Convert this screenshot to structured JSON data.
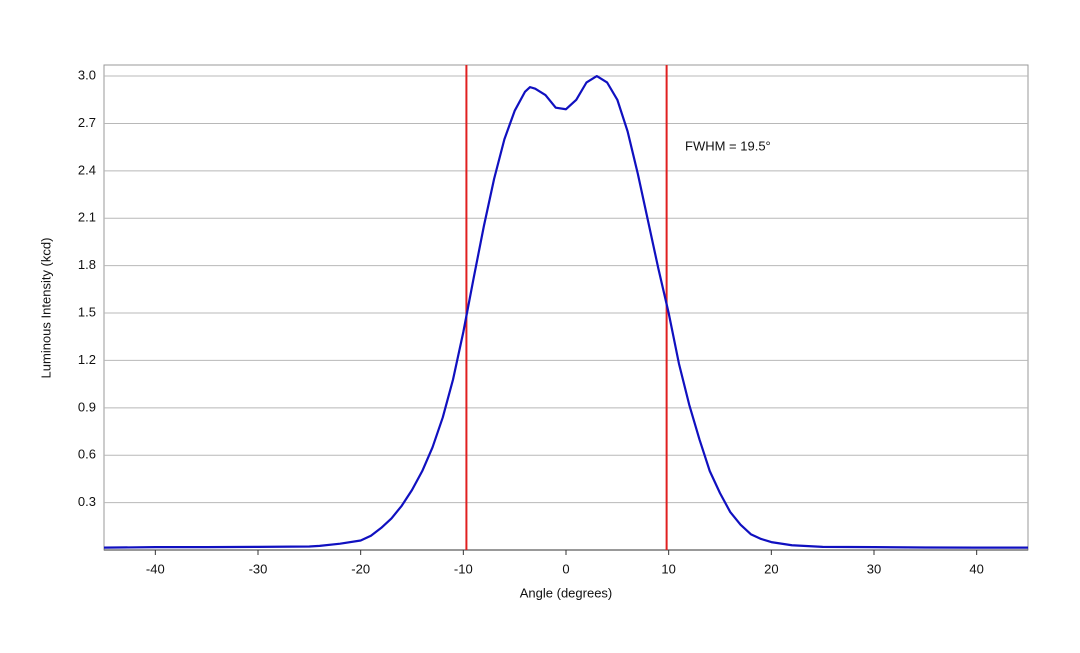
{
  "chart_data": {
    "type": "line",
    "x_label": "Angle (degrees)",
    "y_label": "Luminous Intensity (kcd)",
    "annotation": "FWHM = 19.5°",
    "xlim": [
      -45,
      45
    ],
    "ylim": [
      0,
      3.07
    ],
    "xticks": [
      -40,
      -30,
      -20,
      -10,
      0,
      10,
      20,
      30,
      40
    ],
    "yticks": [
      0.3,
      0.6,
      0.9,
      1.2,
      1.5,
      1.8,
      2.1,
      2.4,
      2.7,
      {
        "value": 3,
        "label": "3.0"
      }
    ],
    "grid": true,
    "vlines": {
      "color": "#e02020",
      "values": [
        -9.7,
        9.8
      ]
    },
    "x": [
      -45,
      -40,
      -35,
      -30,
      -25,
      -24,
      -22,
      -20,
      -19,
      -18,
      -17,
      -16,
      -15,
      -14,
      -13,
      -12,
      -11,
      -10,
      -9,
      -8,
      -7,
      -6,
      -5,
      -4,
      -3.5,
      -3,
      -2,
      -1,
      0,
      1,
      2,
      3,
      4,
      5,
      6,
      7,
      8,
      9,
      10,
      11,
      12,
      13,
      14,
      15,
      16,
      17,
      18,
      19,
      20,
      22,
      25,
      30,
      35,
      40,
      45
    ],
    "series": [
      {
        "color": "#1010c0",
        "values": [
          0.015,
          0.018,
          0.018,
          0.02,
          0.022,
          0.026,
          0.04,
          0.06,
          0.09,
          0.14,
          0.2,
          0.28,
          0.38,
          0.5,
          0.65,
          0.84,
          1.08,
          1.38,
          1.72,
          2.05,
          2.35,
          2.6,
          2.78,
          2.9,
          2.93,
          2.92,
          2.88,
          2.8,
          2.79,
          2.85,
          2.96,
          3.0,
          2.96,
          2.85,
          2.65,
          2.38,
          2.08,
          1.78,
          1.5,
          1.18,
          0.92,
          0.7,
          0.5,
          0.36,
          0.24,
          0.16,
          0.1,
          0.07,
          0.05,
          0.03,
          0.02,
          0.018,
          0.016,
          0.015,
          0.015
        ]
      }
    ]
  }
}
